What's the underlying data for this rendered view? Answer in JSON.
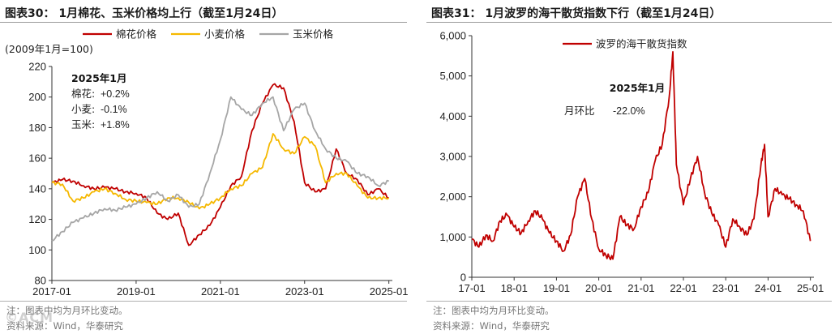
{
  "charts": [
    {
      "figure_title": "图表30：  1月棉花、玉米价格均上行（截至1月24日）",
      "note": "注：图表中均为月环比变动。",
      "source": "资料来源：Wind，华泰研究"
    },
    {
      "figure_title": "图表31：  1月波罗的海干散货指数下行（截至1月24日）",
      "note": "注：图表中均为月环比变动。",
      "source": "资料来源：Wind，华泰研究"
    }
  ],
  "watermark": "©ACM",
  "chart_data": [
    {
      "type": "line",
      "unit_label": "(2009年1月=100)",
      "xlabel": "",
      "ylabel": "",
      "ylim": [
        80,
        220
      ],
      "yticks": [
        80,
        100,
        120,
        140,
        160,
        180,
        200,
        220
      ],
      "xlim": [
        "2017-01",
        "2025-02"
      ],
      "xticks": [
        "2017-01",
        "2019-01",
        "2021-01",
        "2023-01",
        "2025-01"
      ],
      "legend_position": "top",
      "series": [
        {
          "name": "棉花价格",
          "color": "#c00000",
          "x": [
            "2017-01",
            "2017-04",
            "2017-07",
            "2017-10",
            "2018-01",
            "2018-04",
            "2018-07",
            "2018-10",
            "2019-01",
            "2019-04",
            "2019-07",
            "2019-10",
            "2020-01",
            "2020-04",
            "2020-07",
            "2020-10",
            "2021-01",
            "2021-04",
            "2021-07",
            "2021-10",
            "2022-01",
            "2022-04",
            "2022-07",
            "2022-10",
            "2023-01",
            "2023-04",
            "2023-07",
            "2023-10",
            "2024-01",
            "2024-04",
            "2024-07",
            "2024-10",
            "2025-01"
          ],
          "values": [
            144,
            146,
            145,
            142,
            140,
            141,
            140,
            138,
            137,
            134,
            124,
            120,
            124,
            103,
            110,
            116,
            128,
            142,
            148,
            178,
            196,
            208,
            206,
            184,
            144,
            138,
            140,
            166,
            150,
            146,
            136,
            140,
            134
          ]
        },
        {
          "name": "小麦价格",
          "color": "#f5b800",
          "x": [
            "2017-01",
            "2017-04",
            "2017-07",
            "2017-10",
            "2018-01",
            "2018-04",
            "2018-07",
            "2018-10",
            "2019-01",
            "2019-04",
            "2019-07",
            "2019-10",
            "2020-01",
            "2020-04",
            "2020-07",
            "2020-10",
            "2021-01",
            "2021-04",
            "2021-07",
            "2021-10",
            "2022-01",
            "2022-04",
            "2022-07",
            "2022-10",
            "2023-01",
            "2023-04",
            "2023-07",
            "2023-10",
            "2024-01",
            "2024-04",
            "2024-07",
            "2024-10",
            "2025-01"
          ],
          "values": [
            144,
            143,
            132,
            134,
            138,
            140,
            137,
            133,
            132,
            131,
            130,
            134,
            134,
            131,
            127,
            130,
            134,
            140,
            142,
            150,
            154,
            176,
            166,
            163,
            174,
            168,
            144,
            150,
            150,
            142,
            134,
            134,
            134
          ]
        },
        {
          "name": "玉米价格",
          "color": "#a6a6a6",
          "x": [
            "2017-01",
            "2017-04",
            "2017-07",
            "2017-10",
            "2018-01",
            "2018-04",
            "2018-07",
            "2018-10",
            "2019-01",
            "2019-04",
            "2019-07",
            "2019-10",
            "2020-01",
            "2020-04",
            "2020-07",
            "2020-10",
            "2021-01",
            "2021-04",
            "2021-07",
            "2021-10",
            "2022-01",
            "2022-04",
            "2022-07",
            "2022-10",
            "2023-01",
            "2023-04",
            "2023-07",
            "2023-10",
            "2024-01",
            "2024-04",
            "2024-07",
            "2024-10",
            "2025-01"
          ],
          "values": [
            106,
            112,
            118,
            121,
            124,
            127,
            126,
            128,
            130,
            134,
            138,
            132,
            136,
            128,
            130,
            150,
            172,
            200,
            192,
            188,
            196,
            200,
            178,
            192,
            196,
            178,
            166,
            160,
            158,
            150,
            148,
            142,
            145
          ]
        }
      ],
      "annotation": {
        "title": "2025年1月",
        "rows": [
          {
            "label": "棉花:",
            "value": "+0.2%"
          },
          {
            "label": "小麦:",
            "value": "-0.1%"
          },
          {
            "label": "玉米:",
            "value": "+1.8%"
          }
        ]
      }
    },
    {
      "type": "line",
      "xlabel": "",
      "ylabel": "",
      "ylim": [
        0,
        6000
      ],
      "yticks": [
        0,
        1000,
        2000,
        3000,
        4000,
        5000,
        6000
      ],
      "ytick_labels": [
        "0",
        "1,000",
        "2,000",
        "3,000",
        "4,000",
        "5,000",
        "6,000"
      ],
      "xlim": [
        "2017-01",
        "2025-02"
      ],
      "xticks": [
        "2017-01",
        "2018-01",
        "2019-01",
        "2020-01",
        "2021-01",
        "2022-01",
        "2023-01",
        "2024-01",
        "2025-01"
      ],
      "xtick_labels": [
        "17-01",
        "18-01",
        "19-01",
        "20-01",
        "21-01",
        "22-01",
        "23-01",
        "24-01",
        "25-01"
      ],
      "legend_position": "top",
      "series": [
        {
          "name": "波罗的海干散货指数",
          "color": "#c00000",
          "x": [
            "2017-01",
            "2017-03",
            "2017-05",
            "2017-07",
            "2017-09",
            "2017-11",
            "2018-01",
            "2018-03",
            "2018-05",
            "2018-07",
            "2018-09",
            "2018-11",
            "2019-01",
            "2019-03",
            "2019-05",
            "2019-07",
            "2019-09",
            "2019-11",
            "2020-01",
            "2020-03",
            "2020-05",
            "2020-07",
            "2020-09",
            "2020-11",
            "2021-01",
            "2021-03",
            "2021-05",
            "2021-07",
            "2021-09",
            "2021-10",
            "2021-11",
            "2022-01",
            "2022-03",
            "2022-05",
            "2022-07",
            "2022-09",
            "2022-11",
            "2023-01",
            "2023-03",
            "2023-05",
            "2023-07",
            "2023-09",
            "2023-11",
            "2023-12",
            "2024-01",
            "2024-03",
            "2024-05",
            "2024-07",
            "2024-09",
            "2024-11",
            "2025-01"
          ],
          "values": [
            950,
            750,
            1050,
            900,
            1400,
            1550,
            1250,
            1100,
            1400,
            1650,
            1450,
            1100,
            900,
            650,
            1050,
            2000,
            2450,
            1450,
            700,
            550,
            450,
            1500,
            1300,
            1200,
            1750,
            2100,
            2900,
            3300,
            4500,
            5600,
            2800,
            1800,
            2450,
            3000,
            2100,
            1600,
            1300,
            750,
            1450,
            1250,
            1050,
            1450,
            2800,
            3300,
            1500,
            2200,
            2050,
            1950,
            1800,
            1650,
            900
          ]
        }
      ],
      "annotation": {
        "title": "2025年1月",
        "rows": [
          {
            "label": "月环比",
            "value": "-22.0%"
          }
        ]
      }
    }
  ]
}
